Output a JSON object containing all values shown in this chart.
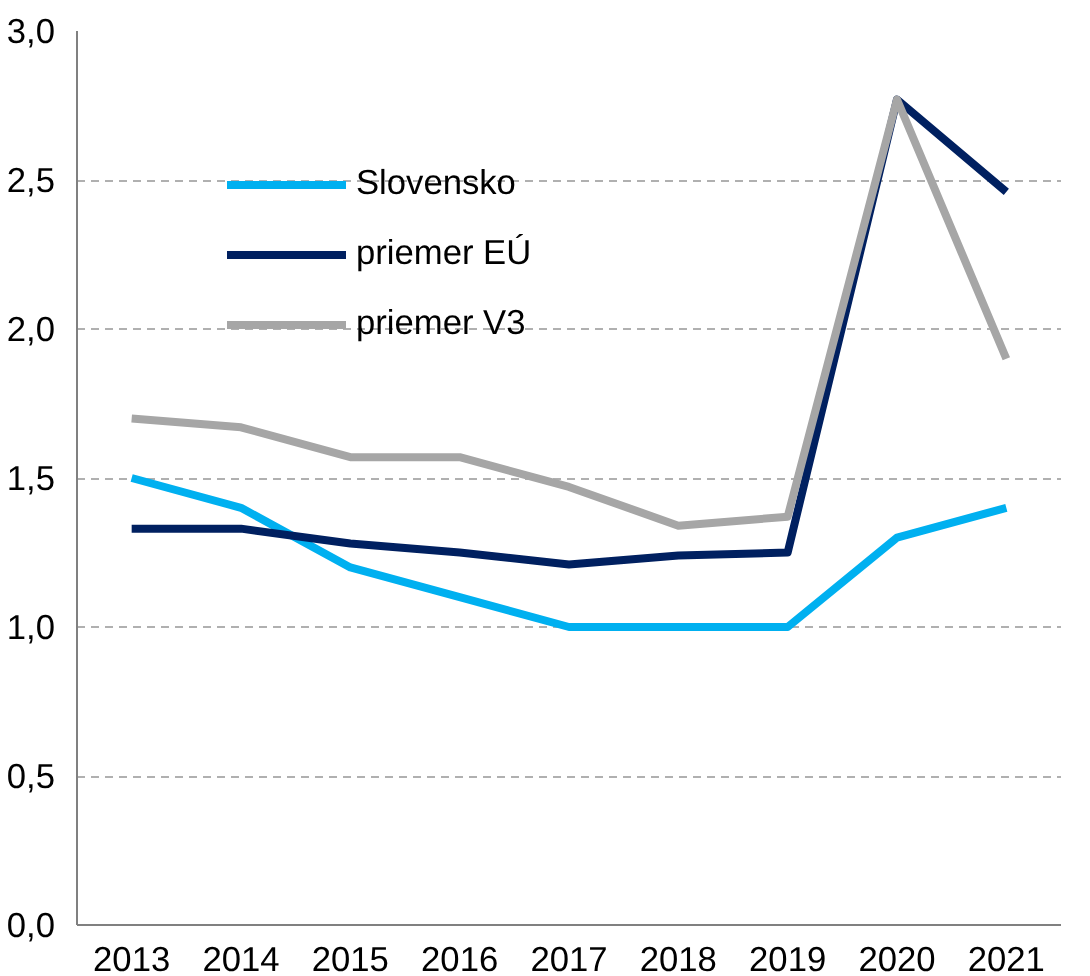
{
  "chart_data": {
    "type": "line",
    "categories": [
      "2013",
      "2014",
      "2015",
      "2016",
      "2017",
      "2018",
      "2019",
      "2020",
      "2021"
    ],
    "series": [
      {
        "name": "Slovensko",
        "color": "#00b0f0",
        "values": [
          1.5,
          1.4,
          1.2,
          1.1,
          1.0,
          1.0,
          1.0,
          1.3,
          1.4
        ]
      },
      {
        "name": "priemer EÚ",
        "color": "#002060",
        "values": [
          1.33,
          1.33,
          1.28,
          1.25,
          1.21,
          1.24,
          1.25,
          2.77,
          2.46
        ]
      },
      {
        "name": "priemer V3",
        "color": "#a6a6a6",
        "values": [
          1.7,
          1.67,
          1.57,
          1.57,
          1.47,
          1.34,
          1.37,
          2.77,
          1.9
        ]
      }
    ],
    "ylim": [
      0,
      3
    ],
    "yticks": [
      {
        "value": 0,
        "label": "0,0"
      },
      {
        "value": 0.5,
        "label": "0,5"
      },
      {
        "value": 1,
        "label": "1,0"
      },
      {
        "value": 1.5,
        "label": "1,5"
      },
      {
        "value": 2,
        "label": "2,0"
      },
      {
        "value": 2.5,
        "label": "2,5"
      },
      {
        "value": 3,
        "label": "3,0"
      }
    ],
    "grid": "y",
    "legend": "top left",
    "line_style": "solid",
    "marker": "none"
  }
}
